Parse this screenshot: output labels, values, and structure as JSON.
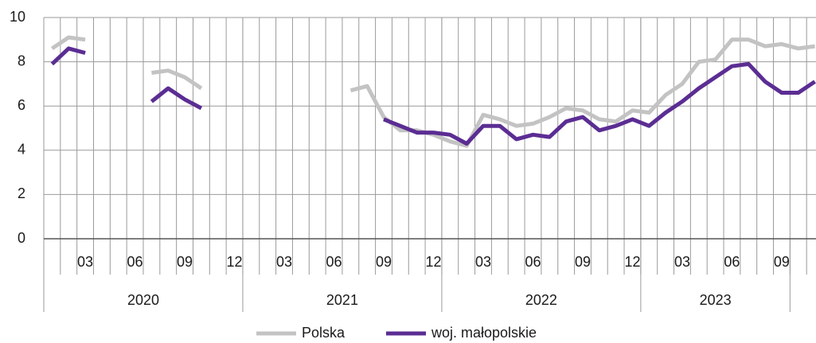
{
  "chart_data": {
    "type": "line",
    "categories": [
      null,
      null,
      "03",
      null,
      null,
      "06",
      null,
      null,
      "09",
      null,
      null,
      "12",
      null,
      null,
      "03",
      null,
      null,
      "06",
      null,
      null,
      "09",
      null,
      null,
      "12",
      null,
      null,
      "03",
      null,
      null,
      "06",
      null,
      null,
      "09",
      null,
      null,
      "12",
      null,
      null,
      "03",
      null,
      null,
      "06",
      null,
      null,
      "09",
      null,
      null
    ],
    "groups": [
      "2020",
      "2021",
      "2022",
      "2023"
    ],
    "series": [
      {
        "name": "Polska",
        "color": "#c3c3c3",
        "values": [
          8.6,
          9.1,
          9.0,
          null,
          null,
          null,
          7.5,
          7.6,
          7.3,
          6.8,
          null,
          null,
          null,
          null,
          null,
          null,
          null,
          null,
          6.7,
          6.9,
          5.5,
          4.9,
          4.9,
          4.7,
          4.4,
          4.2,
          5.6,
          5.4,
          5.1,
          5.2,
          5.5,
          5.9,
          5.8,
          5.4,
          5.3,
          5.8,
          5.7,
          6.5,
          7.0,
          8.0,
          8.1,
          9.0,
          9.0,
          8.7,
          8.8,
          8.6,
          8.7
        ]
      },
      {
        "name": "woj. małopolskie",
        "color": "#5b2d93",
        "values": [
          7.9,
          8.6,
          8.4,
          null,
          null,
          null,
          6.2,
          6.8,
          6.3,
          5.9,
          null,
          null,
          null,
          null,
          null,
          null,
          null,
          null,
          null,
          null,
          5.4,
          5.1,
          4.8,
          4.8,
          4.7,
          4.3,
          5.1,
          5.1,
          4.5,
          4.7,
          4.6,
          5.3,
          5.5,
          4.9,
          5.1,
          5.4,
          5.1,
          5.7,
          6.2,
          6.8,
          7.3,
          7.8,
          7.9,
          7.1,
          6.6,
          6.6,
          7.1
        ]
      }
    ],
    "ylim": [
      0,
      10
    ],
    "yticks": [
      0,
      2,
      4,
      6,
      8,
      10
    ],
    "grid": true
  }
}
